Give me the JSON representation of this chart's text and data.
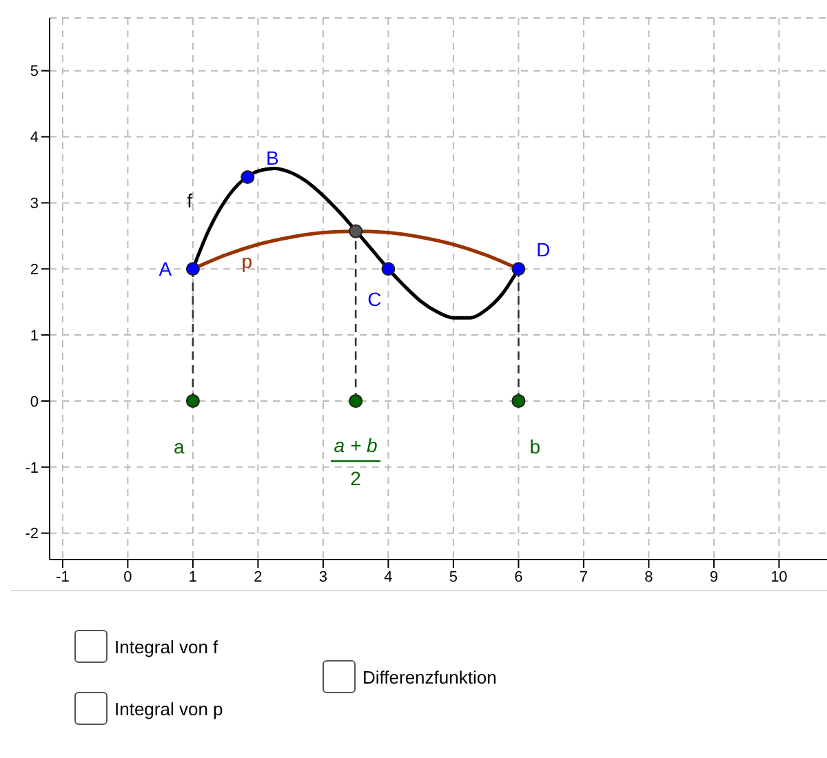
{
  "chart_data": {
    "type": "line",
    "xlim": [
      -1.2,
      10.8
    ],
    "ylim": [
      -2.4,
      5.8
    ],
    "xticks": [
      -1,
      0,
      1,
      2,
      3,
      4,
      5,
      6,
      7,
      8,
      9,
      10
    ],
    "yticks": [
      -2,
      -1,
      0,
      1,
      2,
      3,
      4,
      5
    ],
    "grid": true,
    "marker": "none",
    "series": [
      {
        "color": "#000000",
        "x": [
          1,
          1.25,
          1.5,
          1.75,
          2,
          2.25,
          2.5,
          2.75,
          3,
          3.25,
          3.5,
          3.75,
          4,
          4.25,
          4.5,
          4.75,
          5,
          5.25,
          5.5,
          5.75,
          6
        ],
        "values": [
          2,
          2.6,
          3.04,
          3.33,
          3.48,
          3.52,
          3.46,
          3.32,
          3.11,
          2.86,
          2.58,
          2.29,
          2,
          1.74,
          1.51,
          1.35,
          1.26,
          1.26,
          1.38,
          1.62,
          2
        ]
      },
      {
        "color": "#993300",
        "x": [
          1,
          1.5,
          2,
          2.5,
          3,
          3.5,
          4,
          4.5,
          5,
          5.5,
          6
        ],
        "values": [
          2,
          2.21,
          2.37,
          2.48,
          2.55,
          2.57,
          2.55,
          2.48,
          2.37,
          2.21,
          2
        ]
      },
      {
        "type": "line",
        "color": "#333333",
        "line_style": "dashed",
        "x": [
          1,
          1
        ],
        "values": [
          0,
          2
        ]
      },
      {
        "type": "line",
        "color": "#333333",
        "line_style": "dashed",
        "x": [
          3.5,
          3.5
        ],
        "values": [
          0,
          2.57
        ]
      },
      {
        "type": "line",
        "color": "#333333",
        "line_style": "dashed",
        "x": [
          6,
          6
        ],
        "values": [
          0,
          2
        ]
      },
      {
        "type": "scatter",
        "color": "#0000ff",
        "marker": "circle",
        "x": [
          1,
          1.84,
          4,
          6
        ],
        "values": [
          2,
          3.39,
          2,
          2
        ]
      },
      {
        "type": "scatter",
        "color": "#555555",
        "marker": "circle",
        "x": [
          3.5
        ],
        "values": [
          2.57
        ]
      },
      {
        "type": "scatter",
        "color": "#006400",
        "marker": "circle",
        "x": [
          1,
          3.5,
          6
        ],
        "values": [
          0,
          0,
          0
        ]
      }
    ],
    "annotations": [
      {
        "text": "A",
        "x": 1,
        "y": 2
      },
      {
        "text": "B",
        "x": 1.84,
        "y": 3.39
      },
      {
        "text": "C",
        "x": 4,
        "y": 2
      },
      {
        "text": "D",
        "x": 6,
        "y": 2
      },
      {
        "text": "f",
        "x": 1.5,
        "y": 3.04
      },
      {
        "text": "p",
        "x": 2,
        "y": 2.37
      },
      {
        "text": "a",
        "x": 1,
        "y": 0
      },
      {
        "text": "b",
        "x": 6,
        "y": 0
      },
      {
        "text": "a + b",
        "x": 3.5,
        "y": 0
      },
      "2",
      "Integral von f",
      "Integral von p",
      "Differenzfunktion"
    ]
  }
}
